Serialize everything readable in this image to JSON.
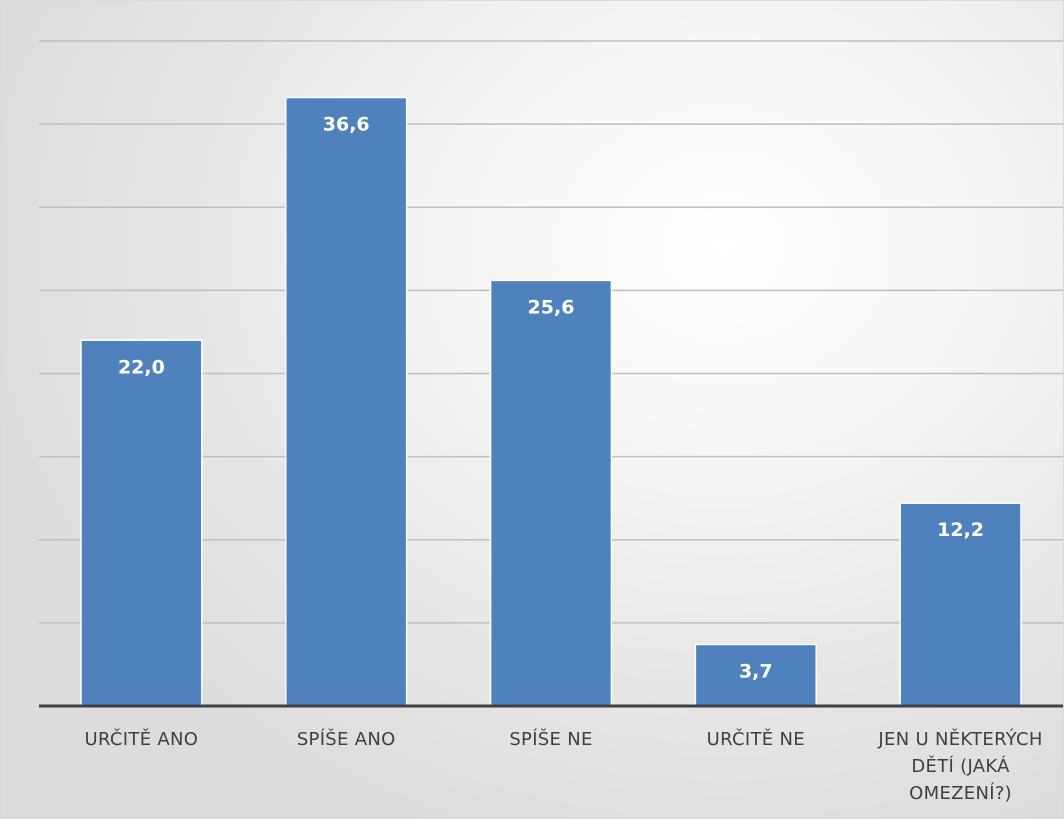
{
  "chart_data": {
    "type": "bar",
    "categories": [
      "URČITĚ ANO",
      "SPÍŠE ANO",
      "SPÍŠE NE",
      "URČITĚ NE",
      "JEN U NĚKTERÝCH DĚTÍ (JAKÁ OMEZENÍ?)"
    ],
    "category_lines": [
      [
        "URČITĚ ANO"
      ],
      [
        "SPÍŠE ANO"
      ],
      [
        "SPÍŠE NE"
      ],
      [
        "URČITĚ NE"
      ],
      [
        "JEN U NĚKTERÝCH",
        "DĚTÍ (JAKÁ",
        "OMEZENÍ?)"
      ]
    ],
    "values": [
      22.0,
      36.6,
      25.6,
      3.7,
      12.2
    ],
    "value_labels": [
      "22,0",
      "36,6",
      "25,6",
      "3,7",
      "12,2"
    ],
    "ylim": [
      0,
      40
    ],
    "grid": true,
    "grid_step": 5,
    "legend": "none",
    "bar_color": "#4f81bd"
  }
}
